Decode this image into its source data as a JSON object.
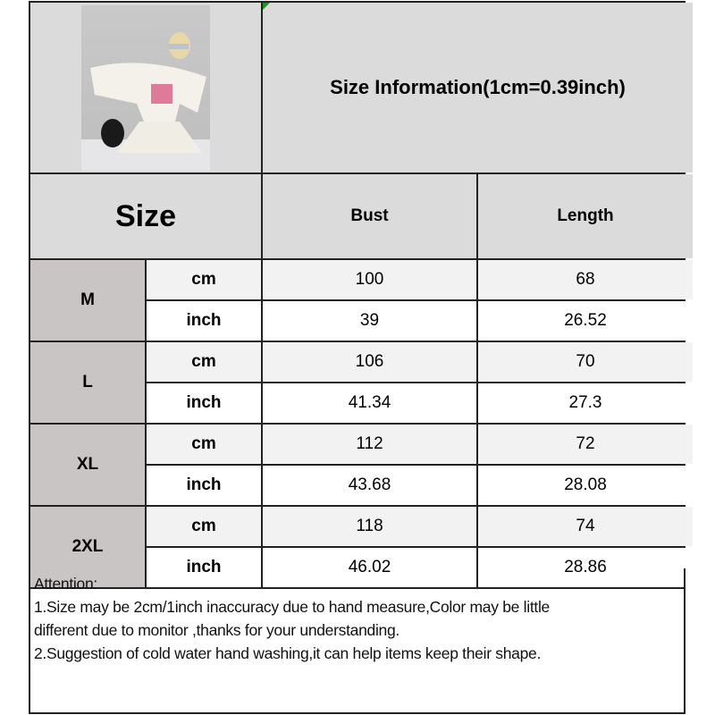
{
  "title": "Size Information(1cm=0.39inch)",
  "header": {
    "size": "Size",
    "columns": [
      "Bust",
      "Length"
    ]
  },
  "rows": [
    {
      "size": "M",
      "cm": {
        "unit": "cm",
        "bust": "100",
        "length": "68"
      },
      "inch": {
        "unit": "inch",
        "bust": "39",
        "length": "26.52"
      }
    },
    {
      "size": "L",
      "cm": {
        "unit": "cm",
        "bust": "106",
        "length": "70"
      },
      "inch": {
        "unit": "inch",
        "bust": "41.34",
        "length": "27.3"
      }
    },
    {
      "size": "XL",
      "cm": {
        "unit": "cm",
        "bust": "112",
        "length": "72"
      },
      "inch": {
        "unit": "inch",
        "bust": "43.68",
        "length": "28.08"
      }
    },
    {
      "size": "2XL",
      "cm": {
        "unit": "cm",
        "bust": "118",
        "length": "74"
      },
      "inch": {
        "unit": "inch",
        "bust": "46.02",
        "length": "28.86"
      }
    }
  ],
  "attention": {
    "heading": "Attention:",
    "lines": [
      "1.Size may be 2cm/1inch inaccuracy due to hand measure,Color may be little",
      "different due to monitor ,thanks for your understanding.",
      "2.Suggestion of cold water hand washing,it can help items keep their shape."
    ]
  },
  "colors": {
    "header_bg": "#dcdbdb",
    "size_bg": "#c9c5c5",
    "border": "#222222"
  }
}
